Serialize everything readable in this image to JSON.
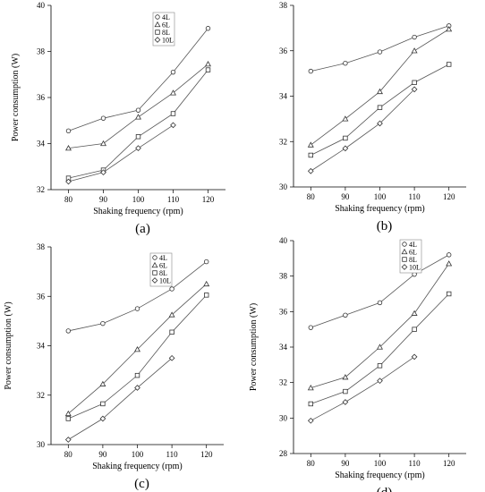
{
  "chart_data": [
    {
      "type": "line",
      "panel_label": "(a)",
      "xlabel": "Shaking frequency (rpm)",
      "ylabel": "Power consumption (W)",
      "x": [
        80,
        90,
        100,
        110,
        120
      ],
      "xticks": [
        80,
        90,
        100,
        110,
        120
      ],
      "yticks": [
        32,
        34,
        36,
        38,
        40
      ],
      "xlim": [
        75,
        125
      ],
      "ylim": [
        32,
        40
      ],
      "legend": "top-center",
      "grid": false,
      "series": [
        {
          "name": "4L",
          "marker": "circle",
          "values": [
            34.55,
            35.1,
            35.45,
            37.1,
            39.0
          ]
        },
        {
          "name": "6L",
          "marker": "triangle",
          "values": [
            33.8,
            34.0,
            35.15,
            36.2,
            37.45
          ]
        },
        {
          "name": "8L",
          "marker": "square",
          "values": [
            32.5,
            32.85,
            34.3,
            35.3,
            37.2
          ]
        },
        {
          "name": "10L",
          "marker": "diamond",
          "values": [
            32.35,
            32.75,
            33.8,
            34.8,
            null
          ]
        }
      ]
    },
    {
      "type": "line",
      "panel_label": "(b)",
      "xlabel": "Shaking frequency (rpm)",
      "ylabel": "",
      "x": [
        80,
        90,
        100,
        110,
        120
      ],
      "xticks": [
        80,
        90,
        100,
        110,
        120
      ],
      "yticks": [
        30,
        32,
        34,
        36,
        38
      ],
      "xlim": [
        75,
        125
      ],
      "ylim": [
        30,
        38
      ],
      "legend": "none",
      "grid": false,
      "series": [
        {
          "name": "4L",
          "marker": "circle",
          "values": [
            35.1,
            35.45,
            35.95,
            36.6,
            37.1
          ]
        },
        {
          "name": "6L",
          "marker": "triangle",
          "values": [
            31.85,
            33.0,
            34.2,
            36.0,
            36.95
          ]
        },
        {
          "name": "8L",
          "marker": "square",
          "values": [
            31.4,
            32.15,
            33.5,
            34.6,
            35.4
          ]
        },
        {
          "name": "10L",
          "marker": "diamond",
          "values": [
            30.7,
            31.7,
            32.8,
            34.3,
            null
          ]
        }
      ]
    },
    {
      "type": "line",
      "panel_label": "(c)",
      "xlabel": "Shaking frequency (rpm)",
      "ylabel": "Power consumption (W)",
      "x": [
        80,
        90,
        100,
        110,
        120
      ],
      "xticks": [
        80,
        90,
        100,
        110,
        120
      ],
      "yticks": [
        30,
        32,
        34,
        36,
        38
      ],
      "xlim": [
        75,
        125
      ],
      "ylim": [
        30,
        38
      ],
      "legend": "top-right",
      "grid": false,
      "series": [
        {
          "name": "4L",
          "marker": "circle",
          "values": [
            34.6,
            34.9,
            35.5,
            36.3,
            37.4
          ]
        },
        {
          "name": "6L",
          "marker": "triangle",
          "values": [
            31.25,
            32.45,
            33.85,
            35.25,
            36.5
          ]
        },
        {
          "name": "8L",
          "marker": "square",
          "values": [
            31.05,
            31.65,
            32.8,
            34.55,
            36.05
          ]
        },
        {
          "name": "10L",
          "marker": "diamond",
          "values": [
            30.2,
            31.05,
            32.3,
            33.5,
            null
          ]
        }
      ]
    },
    {
      "type": "line",
      "panel_label": "(d)",
      "xlabel": "Shaking frequency (rpm)",
      "ylabel": "Power consumption (W)",
      "x": [
        80,
        90,
        100,
        110,
        120
      ],
      "xticks": [
        80,
        90,
        100,
        110,
        120
      ],
      "yticks": [
        28,
        30,
        32,
        34,
        36,
        38,
        40
      ],
      "xlim": [
        75,
        125
      ],
      "ylim": [
        28,
        40
      ],
      "legend": "top-left",
      "grid": false,
      "series": [
        {
          "name": "4L",
          "marker": "circle",
          "values": [
            35.1,
            35.8,
            36.5,
            38.1,
            39.2
          ]
        },
        {
          "name": "6L",
          "marker": "triangle",
          "values": [
            31.7,
            32.3,
            34.0,
            35.9,
            38.7
          ]
        },
        {
          "name": "8L",
          "marker": "square",
          "values": [
            30.8,
            31.5,
            32.95,
            35.0,
            37.0
          ]
        },
        {
          "name": "10L",
          "marker": "diamond",
          "values": [
            29.85,
            30.9,
            32.1,
            33.45,
            null
          ]
        }
      ]
    }
  ]
}
